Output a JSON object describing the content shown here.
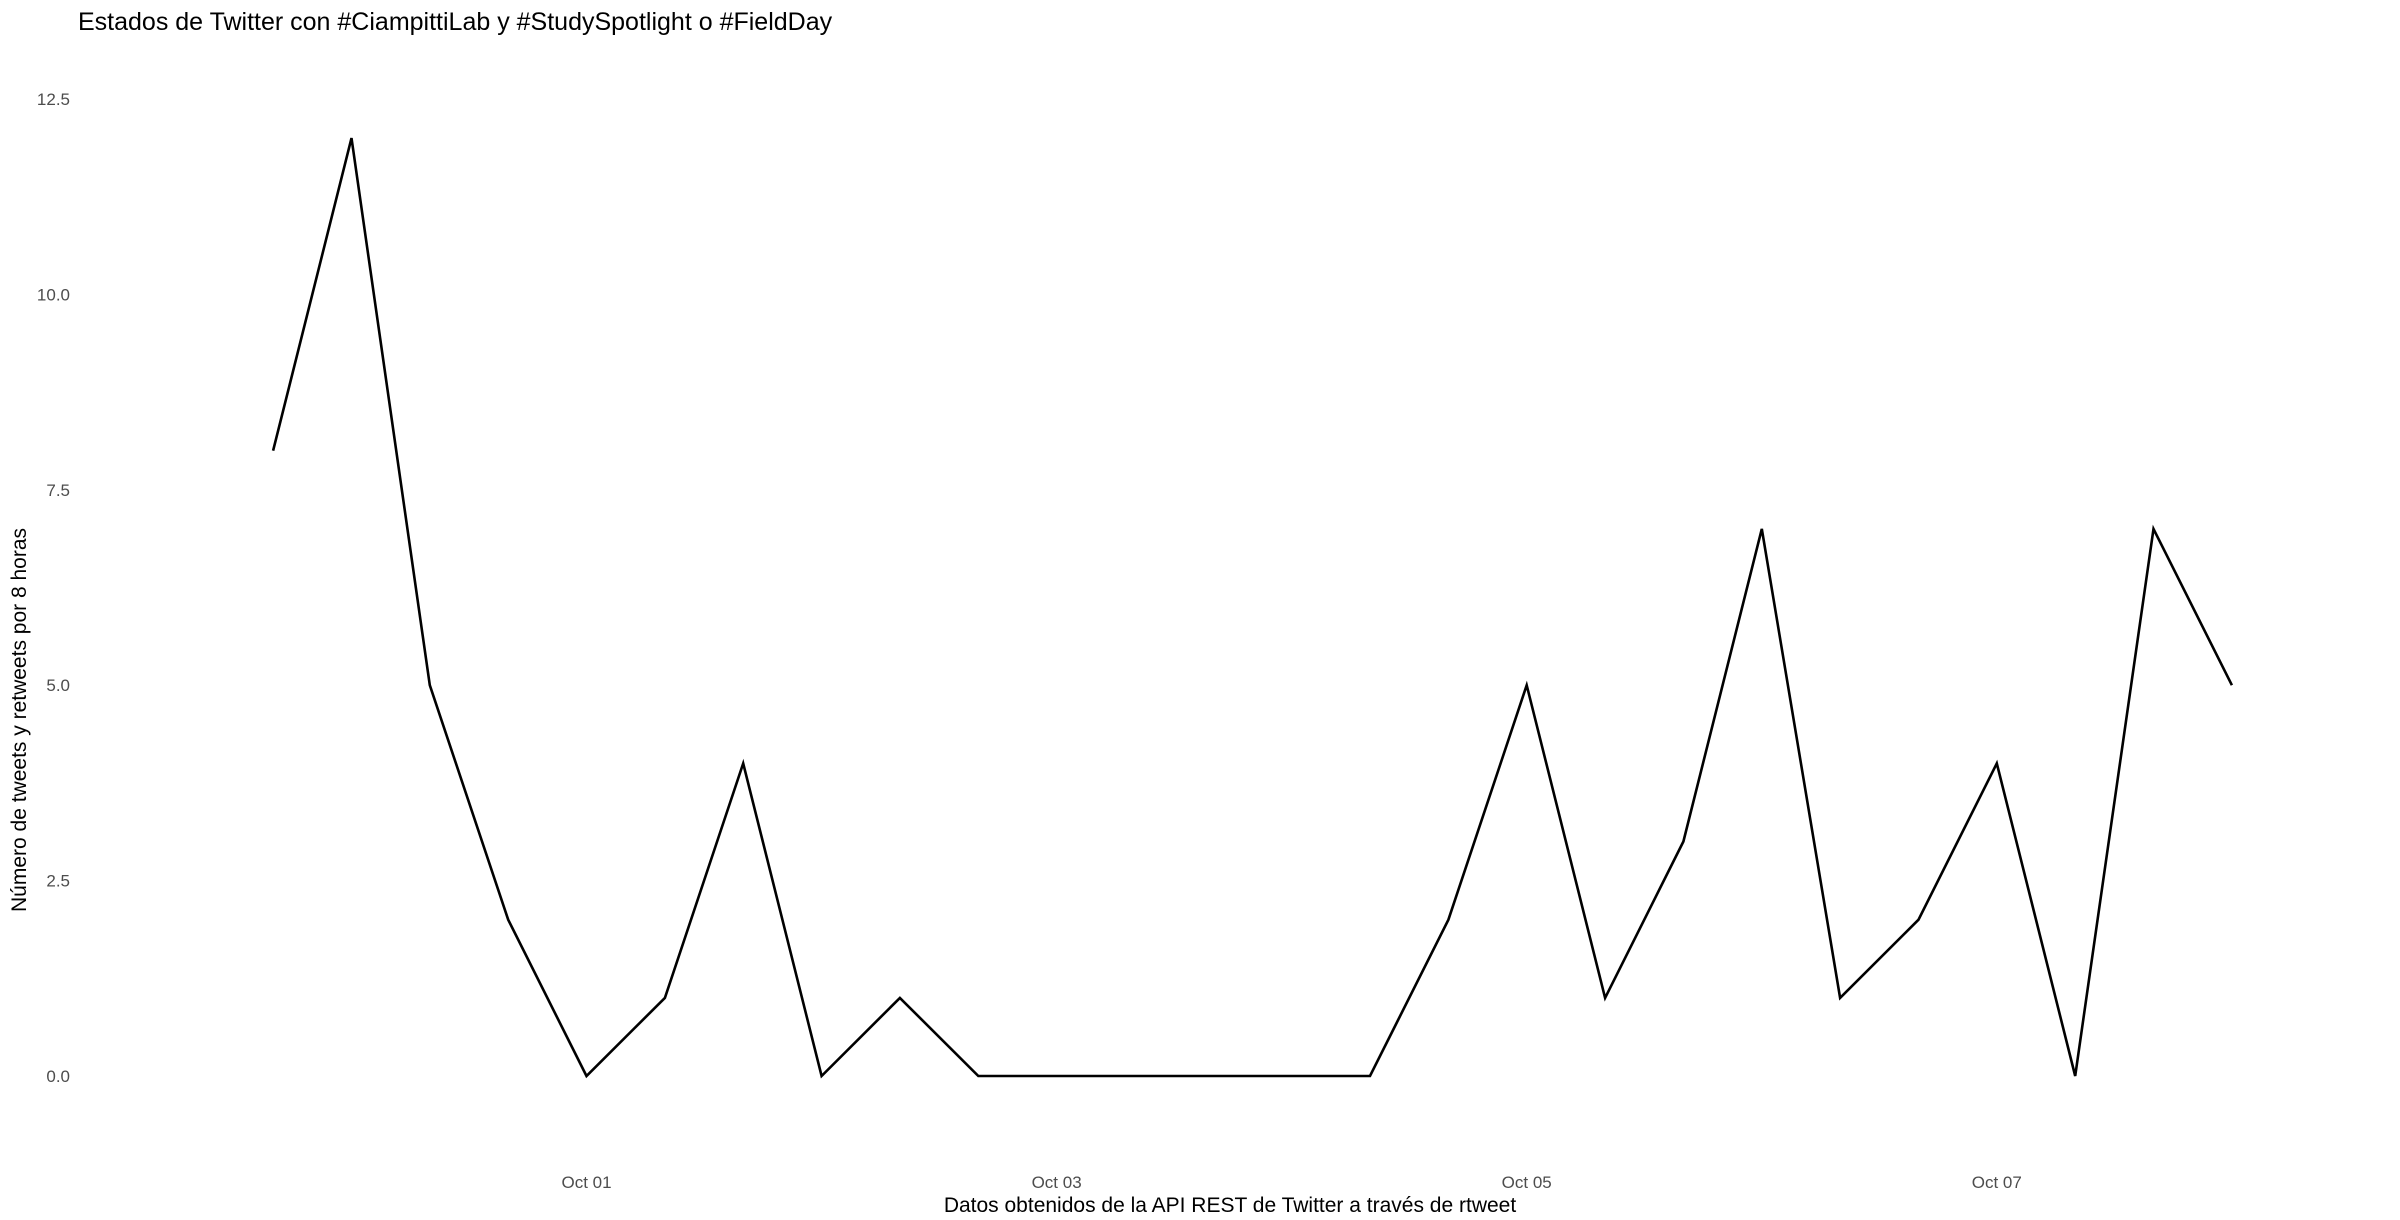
{
  "chart_data": {
    "type": "line",
    "title": "Estados de Twitter con #CiampittiLab y #StudySpotlight o #FieldDay",
    "xlabel": "Datos obtenidos de la API REST de Twitter a través de rtweet",
    "ylabel": "Número de tweets y retweets por 8 horas",
    "interval_hours": 8,
    "x_start": "2018-09-29 16:00",
    "x_ticks": [
      {
        "label": "Oct 01",
        "x": "2018-10-01 00:00"
      },
      {
        "label": "Oct 03",
        "x": "2018-10-03 00:00"
      },
      {
        "label": "Oct 05",
        "x": "2018-10-05 00:00"
      },
      {
        "label": "Oct 07",
        "x": "2018-10-07 00:00"
      }
    ],
    "y_ticks": [
      {
        "label": "0.0",
        "value": 0
      },
      {
        "label": "2.5",
        "value": 2.5
      },
      {
        "label": "5.0",
        "value": 5
      },
      {
        "label": "7.5",
        "value": 7.5
      },
      {
        "label": "10.0",
        "value": 10
      },
      {
        "label": "12.5",
        "value": 12.5
      }
    ],
    "ylim": [
      0,
      12.5
    ],
    "grid": false,
    "legend": "none",
    "line_color": "#000000",
    "series": [
      {
        "values": [
          8,
          12,
          5,
          2,
          0,
          1,
          4,
          0,
          1,
          0,
          0,
          0,
          0,
          0,
          0,
          2,
          5,
          1,
          3,
          7,
          1,
          2,
          4,
          0,
          7,
          5
        ]
      }
    ]
  }
}
